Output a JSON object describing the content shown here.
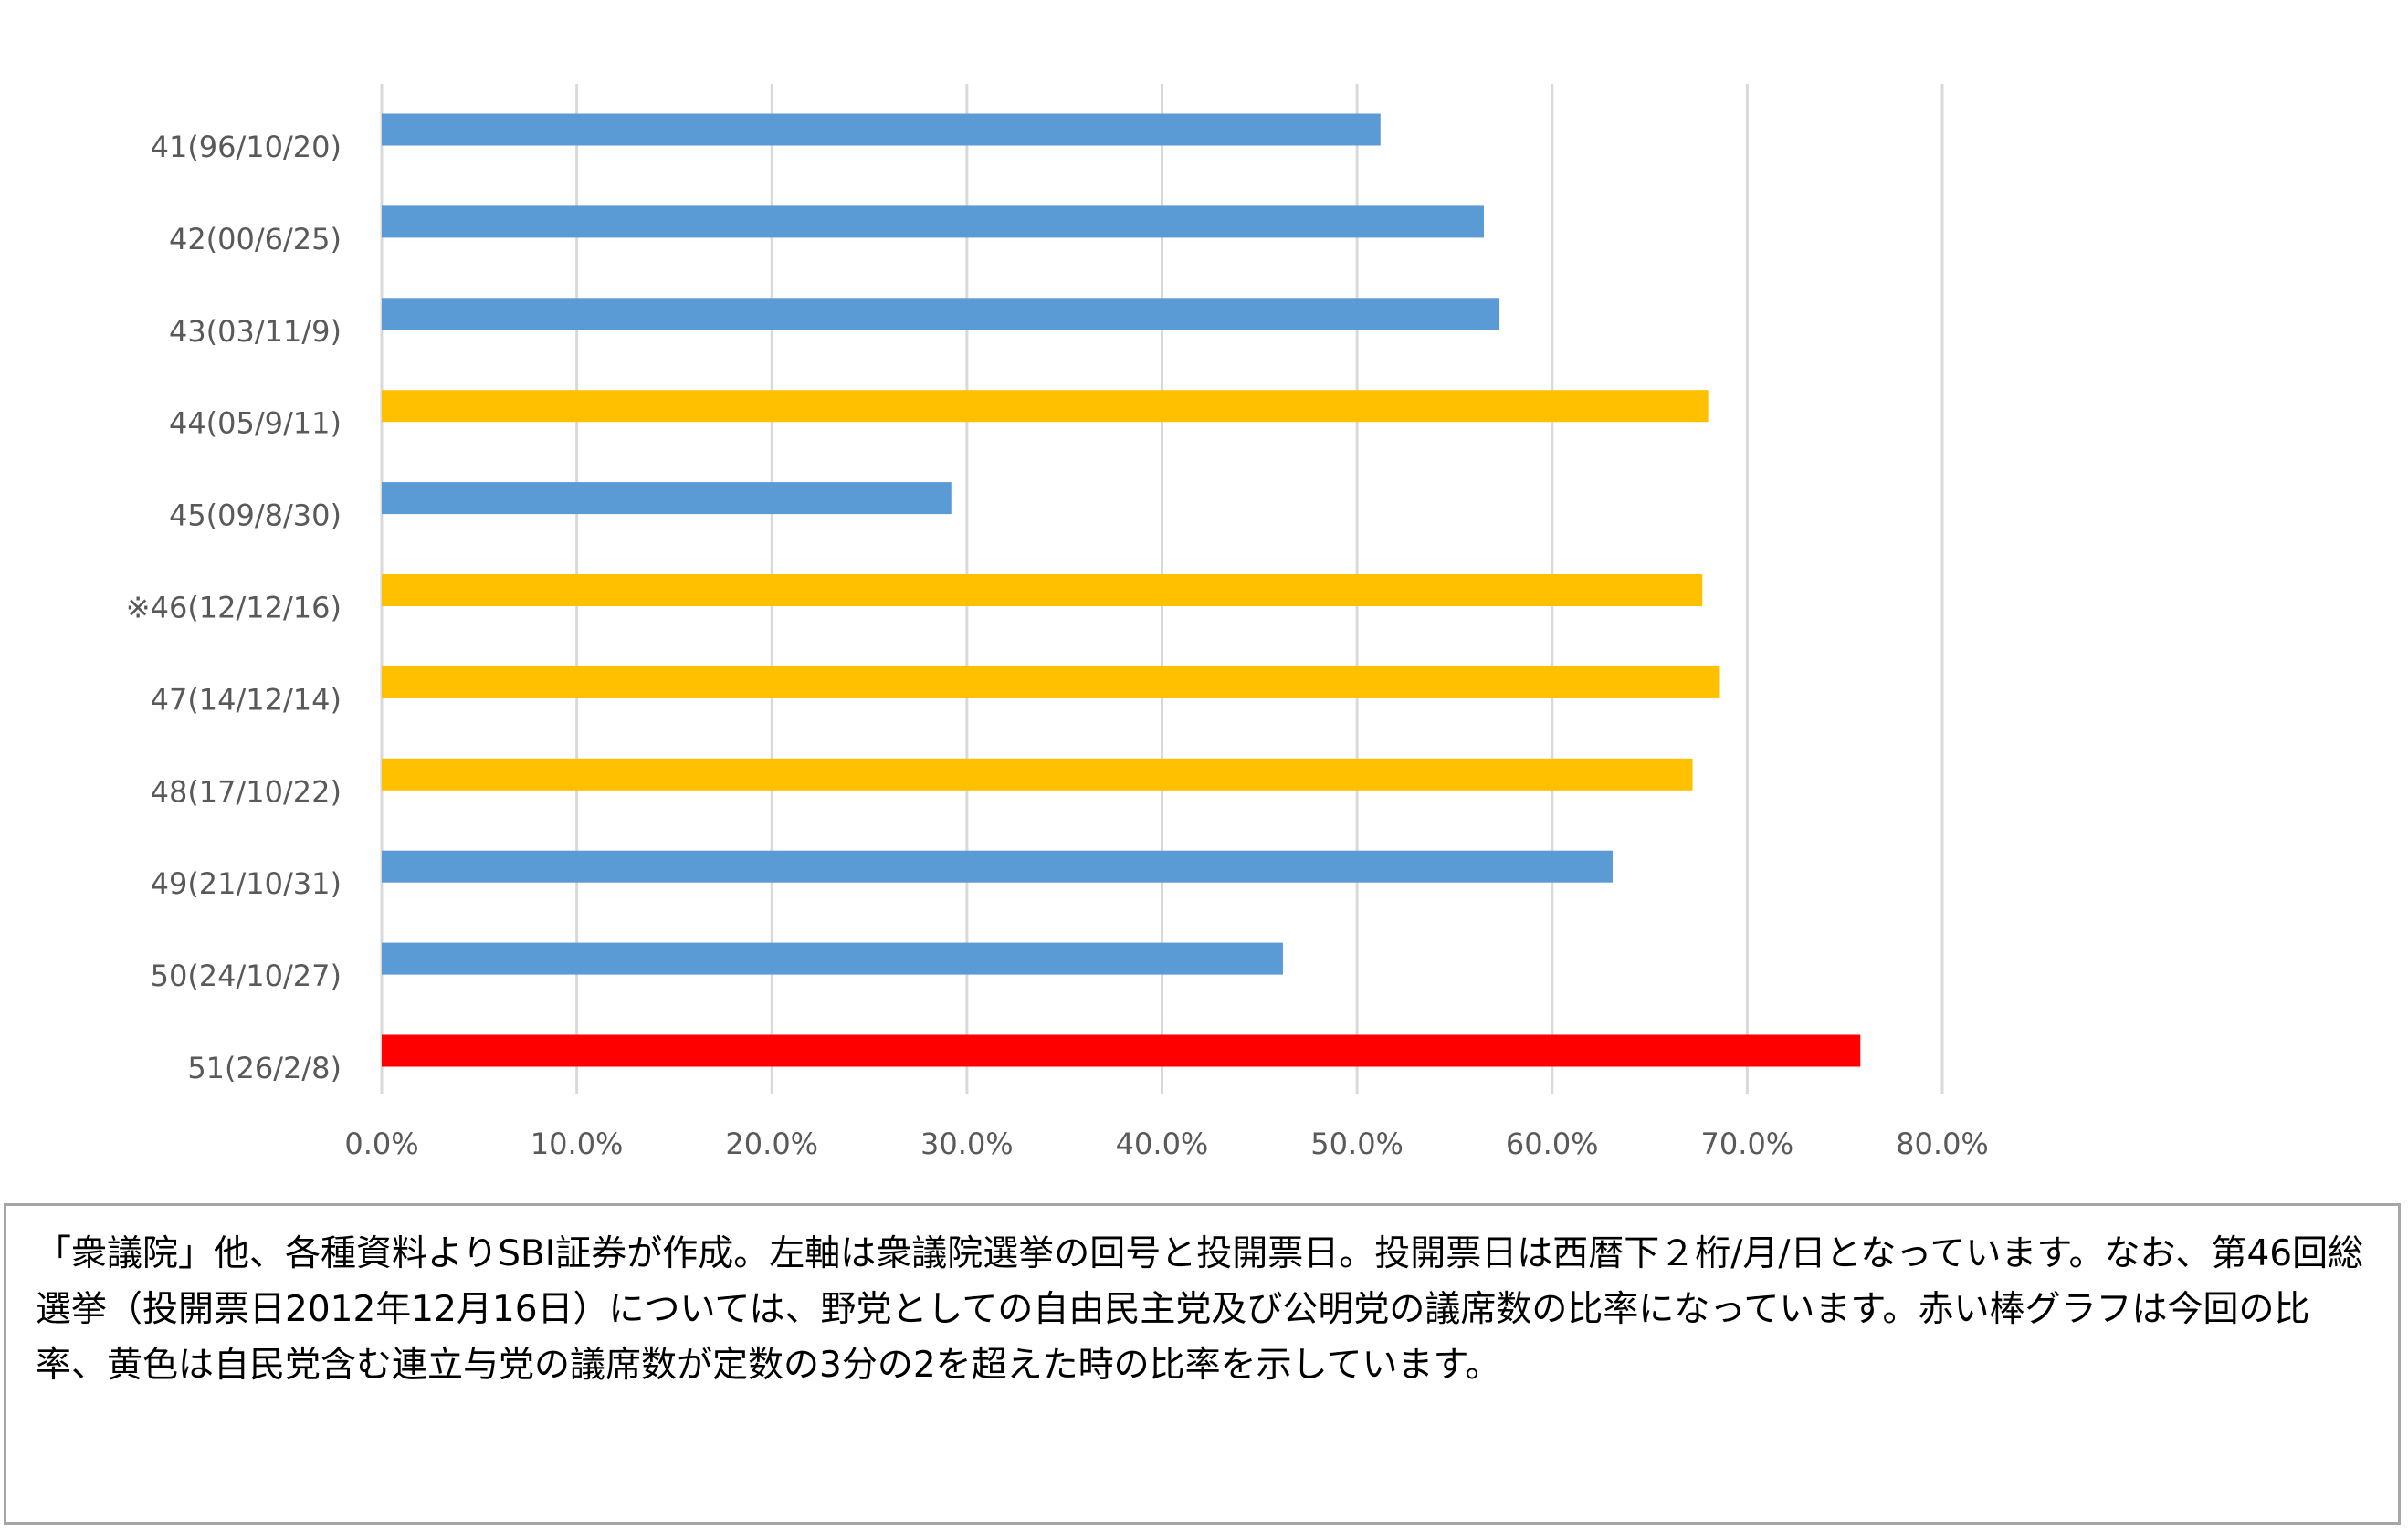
{
  "chart_data": {
    "type": "bar",
    "orientation": "horizontal",
    "categories": [
      "41(96/10/20)",
      "42(00/6/25)",
      "43(03/11/9)",
      "44(05/9/11)",
      "45(09/8/30)",
      "※46(12/12/16)",
      "47(14/12/14)",
      "48(17/10/22)",
      "49(21/10/31)",
      "50(24/10/27)",
      "51(26/2/8)"
    ],
    "values": [
      51.2,
      56.5,
      57.3,
      68.0,
      29.2,
      67.7,
      68.6,
      67.2,
      63.1,
      46.2,
      75.8
    ],
    "bar_colors": [
      "#5b9bd5",
      "#5b9bd5",
      "#5b9bd5",
      "#ffc000",
      "#5b9bd5",
      "#ffc000",
      "#ffc000",
      "#ffc000",
      "#5b9bd5",
      "#5b9bd5",
      "#ff0000"
    ],
    "x_ticks": [
      "0.0%",
      "10.0%",
      "20.0%",
      "30.0%",
      "40.0%",
      "50.0%",
      "60.0%",
      "70.0%",
      "80.0%"
    ],
    "xlim": [
      0,
      80
    ],
    "grid": "vertical",
    "title": "",
    "xlabel": "",
    "ylabel": ""
  },
  "note": "「衆議院」他、各種資料よりSBI証券が作成。左軸は衆議院選挙の回号と投開票日。投開票日は西暦下２桁/月/日となっています。なお、第46回総選挙（投開票日2012年12月16日）については、野党としての自由民主党及び公明党の議席数の比率になっています。赤い棒グラフは今回の比率、黄色は自民党含む連立与党の議席数が定数の3分の2を超えた時の比率を示しています。",
  "colors": {
    "blue": "#5b9bd5",
    "gold": "#ffc000",
    "red": "#ff0000",
    "grid": "#d9d9d9",
    "axis_text": "#595959"
  }
}
